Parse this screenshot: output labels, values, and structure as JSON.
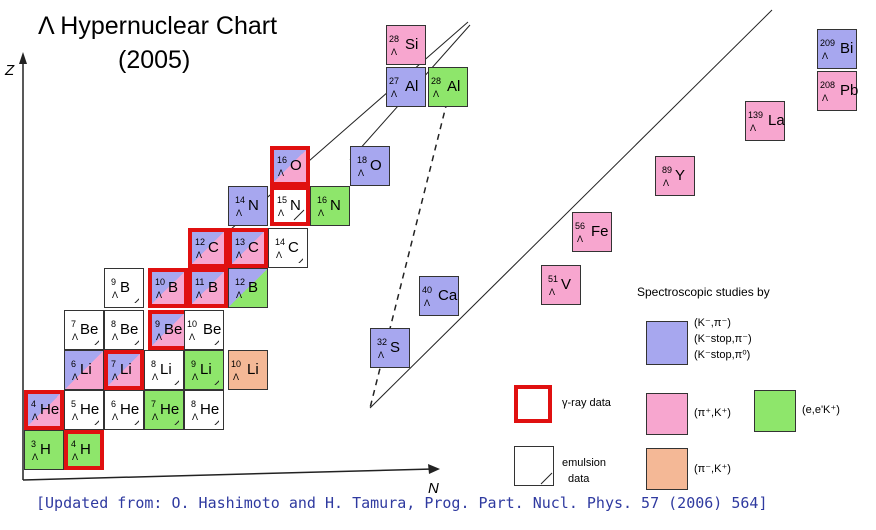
{
  "title": "Λ Hypernuclear Chart",
  "subtitle": "(2005)",
  "axes": {
    "y_label": "Z",
    "x_label": "N"
  },
  "colors": {
    "kpi": "#a7a7ef",
    "pik": "#f7a6cf",
    "eek": "#8ee66b",
    "pimk": "#f4b896",
    "emulsion": "#ffffff",
    "gamma_border": "#e01010",
    "citation": "#2f3aa0"
  },
  "nuclides": [
    {
      "A": "3",
      "el": "H",
      "c": [
        "eek"
      ]
    },
    {
      "A": "4",
      "el": "H",
      "c": [
        "eek"
      ],
      "gamma": true
    },
    {
      "A": "4",
      "el": "He",
      "c": [
        "kpi",
        "pik"
      ],
      "gamma": true
    },
    {
      "A": "5",
      "el": "He",
      "c": [
        "emulsion"
      ],
      "emulsion": true
    },
    {
      "A": "6",
      "el": "He",
      "c": [
        "emulsion"
      ],
      "emulsion": true
    },
    {
      "A": "7",
      "el": "He",
      "c": [
        "eek"
      ],
      "emulsion": true
    },
    {
      "A": "8",
      "el": "He",
      "c": [
        "emulsion"
      ],
      "emulsion": true
    },
    {
      "A": "6",
      "el": "Li",
      "c": [
        "kpi",
        "pik"
      ]
    },
    {
      "A": "7",
      "el": "Li",
      "c": [
        "kpi",
        "pik"
      ],
      "gamma": true
    },
    {
      "A": "8",
      "el": "Li",
      "c": [
        "emulsion"
      ],
      "emulsion": true
    },
    {
      "A": "9",
      "el": "Li",
      "c": [
        "eek"
      ],
      "emulsion": true
    },
    {
      "A": "10",
      "el": "Li",
      "c": [
        "pimk"
      ]
    },
    {
      "A": "7",
      "el": "Be",
      "c": [
        "emulsion"
      ],
      "emulsion": true
    },
    {
      "A": "8",
      "el": "Be",
      "c": [
        "emulsion"
      ],
      "emulsion": true
    },
    {
      "A": "9",
      "el": "Be",
      "c": [
        "kpi",
        "pik"
      ],
      "gamma": true
    },
    {
      "A": "10",
      "el": "Be",
      "c": [
        "emulsion"
      ],
      "emulsion": true
    },
    {
      "A": "9",
      "el": "B",
      "c": [
        "emulsion"
      ],
      "emulsion": true
    },
    {
      "A": "10",
      "el": "B",
      "c": [
        "kpi",
        "pik"
      ],
      "gamma": true
    },
    {
      "A": "11",
      "el": "B",
      "c": [
        "kpi",
        "pik"
      ],
      "gamma": true
    },
    {
      "A": "12",
      "el": "B",
      "c": [
        "kpi",
        "eek"
      ]
    },
    {
      "A": "12",
      "el": "C",
      "c": [
        "kpi",
        "pik"
      ],
      "gamma": true
    },
    {
      "A": "13",
      "el": "C",
      "c": [
        "kpi",
        "pik"
      ],
      "gamma": true
    },
    {
      "A": "14",
      "el": "C",
      "c": [
        "emulsion"
      ],
      "emulsion": true
    },
    {
      "A": "14",
      "el": "N",
      "c": [
        "kpi"
      ]
    },
    {
      "A": "15",
      "el": "N",
      "c": [
        "emulsion"
      ],
      "emulsion": true,
      "gamma": true
    },
    {
      "A": "16",
      "el": "N",
      "c": [
        "eek"
      ]
    },
    {
      "A": "16",
      "el": "O",
      "c": [
        "kpi",
        "pik"
      ],
      "gamma": true
    },
    {
      "A": "18",
      "el": "O",
      "c": [
        "kpi"
      ]
    },
    {
      "A": "28",
      "el": "Si",
      "c": [
        "pik"
      ]
    },
    {
      "A": "27",
      "el": "Al",
      "c": [
        "kpi"
      ]
    },
    {
      "A": "28",
      "el": "Al",
      "c": [
        "eek"
      ]
    },
    {
      "A": "32",
      "el": "S",
      "c": [
        "kpi"
      ]
    },
    {
      "A": "40",
      "el": "Ca",
      "c": [
        "kpi"
      ]
    },
    {
      "A": "51",
      "el": "V",
      "c": [
        "pik"
      ]
    },
    {
      "A": "56",
      "el": "Fe",
      "c": [
        "pik"
      ]
    },
    {
      "A": "89",
      "el": "Y",
      "c": [
        "pik"
      ]
    },
    {
      "A": "139",
      "el": "La",
      "c": [
        "pik"
      ]
    },
    {
      "A": "208",
      "el": "Pb",
      "c": [
        "pik"
      ]
    },
    {
      "A": "209",
      "el": "Bi",
      "c": [
        "kpi"
      ]
    }
  ],
  "legend": {
    "title": "Spectroscopic studies by",
    "kpi_lines": [
      "(K⁻,π⁻)",
      "(K⁻stop,π⁻)",
      "(K⁻stop,π⁰)"
    ],
    "pik": "(π⁺,K⁺)",
    "eek": "(e,e'K⁺)",
    "pimk": "(π⁻,K⁺)",
    "gamma": "γ-ray data",
    "emulsion_1": "emulsion",
    "emulsion_2": "data"
  },
  "lambda_symbol": "Λ",
  "citation": "[Updated from: O. Hashimoto and H. Tamura, Prog. Part. Nucl. Phys. 57 (2006) 564]"
}
